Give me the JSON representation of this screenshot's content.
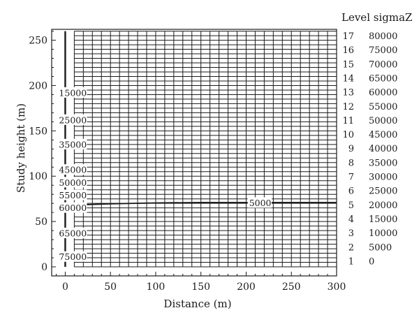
{
  "chart_data": {
    "type": "line",
    "title": "",
    "xlabel": "Distance (m)",
    "ylabel": "Study height (m)",
    "xlim": [
      -15,
      300
    ],
    "ylim": [
      -10,
      262
    ],
    "x_ticks": [
      0,
      50,
      100,
      150,
      200,
      250,
      300
    ],
    "x_tick_labels": [
      "0",
      "50",
      "100",
      "150",
      "200",
      "250",
      "300"
    ],
    "y_ticks": [
      0,
      50,
      100,
      150,
      200,
      250
    ],
    "y_tick_labels": [
      "0",
      "50",
      "100",
      "150",
      "200",
      "250"
    ],
    "grid_x_step": 10,
    "grid_y_step": 5,
    "grid_x_range": [
      10,
      300
    ],
    "grid_y_range": [
      0,
      260
    ],
    "grid": true,
    "series": [
      {
        "x": [
          0,
          20,
          50,
          100,
          150,
          200,
          250,
          300
        ],
        "y": [
          66,
          68.5,
          69.5,
          70.5,
          71,
          71,
          71,
          71
        ]
      }
    ],
    "contour_labels": [
      {
        "text": "15000",
        "x": 0,
        "y": 192
      },
      {
        "text": "25000",
        "x": 0,
        "y": 162
      },
      {
        "text": "35000",
        "x": 0,
        "y": 135
      },
      {
        "text": "45000",
        "x": 0,
        "y": 107
      },
      {
        "text": "50000",
        "x": 0,
        "y": 93
      },
      {
        "text": "55000",
        "x": 0,
        "y": 79
      },
      {
        "text": "60000",
        "x": 0,
        "y": 65
      },
      {
        "text": "65000",
        "x": 0,
        "y": 37
      },
      {
        "text": "75000",
        "x": 0,
        "y": 11
      },
      {
        "text": "5000",
        "x": 215,
        "y": 70.5
      }
    ],
    "legend": {
      "placement": "right",
      "header": "Level sigmaZ",
      "levels": [
        "17",
        "16",
        "15",
        "14",
        "13",
        "12",
        "11",
        "10",
        "9",
        "8",
        "7",
        "6",
        "5",
        "4",
        "3",
        "2",
        "1"
      ],
      "values": [
        "80000",
        "75000",
        "70000",
        "65000",
        "60000",
        "55000",
        "50000",
        "45000",
        "40000",
        "35000",
        "30000",
        "25000",
        "20000",
        "15000",
        "10000",
        "5000",
        "0"
      ]
    },
    "colors": {
      "grid": "#1a1a1a",
      "contour": "#1a1a1a",
      "text": "#1a1a1a"
    }
  }
}
